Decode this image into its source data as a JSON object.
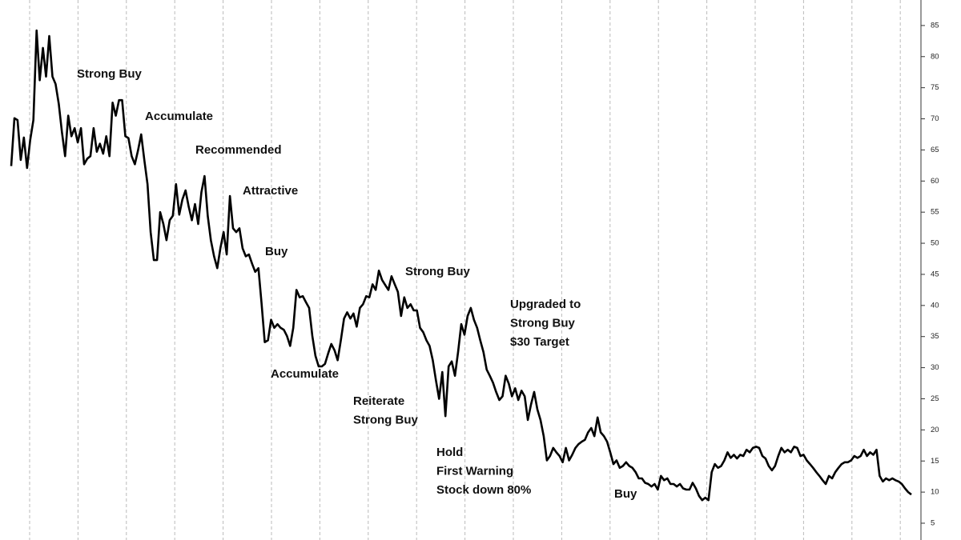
{
  "chart_data": {
    "type": "line",
    "annotations": [
      [
        "Strong Buy"
      ],
      [
        "Accumulate"
      ],
      [
        "Recommended"
      ],
      [
        "Attractive"
      ],
      [
        "Buy"
      ],
      [
        "Strong Buy"
      ],
      [
        "Upgraded to",
        "Strong Buy",
        "$30 Target"
      ],
      [
        "Accumulate"
      ],
      [
        "Reiterate",
        "Strong Buy"
      ],
      [
        "Hold",
        "First Warning",
        "Stock down 80%"
      ],
      [
        "Buy"
      ]
    ],
    "series": [
      {
        "color": "#000000",
        "values": [
          62.4,
          70.1,
          69.8,
          63.4,
          67,
          62.1,
          66.6,
          69.8,
          84.2,
          76.2,
          81.4,
          76.8,
          83.3,
          76.8,
          75.6,
          72.4,
          67.9,
          64,
          70.5,
          67.2,
          68.5,
          66.2,
          68.5,
          62.7,
          63.6,
          64,
          68.5,
          64.7,
          66,
          64.4,
          67.2,
          64,
          72.6,
          70.5,
          73,
          73,
          67.2,
          66.9,
          64,
          62.7,
          64.9,
          67.5,
          63.4,
          59.5,
          51.8,
          47.3,
          47.3,
          55,
          53.1,
          50.5,
          53.7,
          54.4,
          59.5,
          54.6,
          57,
          58.5,
          55.9,
          53.7,
          56.3,
          53.1,
          58.2,
          60.8,
          54.4,
          50.5,
          47.9,
          46,
          49.2,
          51.8,
          48.2,
          57.6,
          52.4,
          51.8,
          52.4,
          49.2,
          47.9,
          48.2,
          46.7,
          45.4,
          46,
          40.2,
          34.1,
          34.4,
          37.7,
          36.4,
          37,
          36.4,
          36.1,
          35.1,
          33.5,
          36.4,
          42.5,
          41.3,
          41.5,
          40.5,
          39.6,
          35.1,
          31.9,
          30.2,
          30.2,
          30.6,
          32.3,
          33.8,
          32.8,
          31.2,
          34.4,
          37.9,
          38.9,
          37.9,
          38.7,
          36.6,
          39.6,
          40.2,
          41.5,
          41.3,
          43.4,
          42.5,
          45.6,
          44.1,
          43.3,
          42.5,
          44.7,
          43.4,
          42.2,
          38.3,
          41.3,
          39.6,
          40.2,
          39.2,
          39.2,
          36.4,
          35.7,
          34.4,
          33.5,
          31.2,
          28,
          25,
          29.3,
          22.2,
          30.2,
          31,
          28.7,
          32.5,
          37,
          35.3,
          38.3,
          39.6,
          37.7,
          36.4,
          34.4,
          32.5,
          29.7,
          28.7,
          27.6,
          26.1,
          24.8,
          25.4,
          28.7,
          27.4,
          25.4,
          26.7,
          24.8,
          26.3,
          25.4,
          21.6,
          24.1,
          26.1,
          23.3,
          21.6,
          19,
          15.1,
          15.8,
          17.1,
          16.4,
          15.8,
          14.8,
          17.1,
          15.1,
          16,
          17.1,
          17.7,
          18.1,
          18.4,
          19.6,
          20.3,
          19,
          22,
          19.6,
          19,
          18.1,
          16.4,
          14.5,
          15.1,
          13.9,
          14.2,
          14.8,
          14.2,
          13.9,
          13.2,
          12.2,
          12.2,
          11.5,
          11.3,
          10.9,
          11.3,
          10.4,
          12.6,
          11.9,
          12.2,
          11.3,
          11.3,
          10.9,
          11.3,
          10.6,
          10.4,
          10.4,
          11.5,
          10.6,
          9.4,
          8.7,
          9.1,
          8.7,
          13.2,
          14.5,
          13.9,
          14.2,
          15.1,
          16.4,
          15.5,
          16,
          15.4,
          16,
          15.8,
          16.8,
          16.4,
          17.1,
          17.3,
          17.1,
          15.8,
          15.4,
          14.2,
          13.5,
          14.2,
          15.8,
          17.1,
          16.4,
          16.8,
          16.4,
          17.3,
          17.1,
          15.8,
          16,
          15.1,
          14.5,
          13.9,
          13.2,
          12.6,
          11.9,
          11.3,
          12.6,
          12.2,
          13.2,
          13.9,
          14.5,
          14.8,
          14.8,
          15.1,
          15.8,
          15.5,
          15.8,
          16.8,
          15.8,
          16.4,
          16,
          16.8,
          12.6,
          11.7,
          12.2,
          11.9,
          12.2,
          11.9,
          11.7,
          11.3,
          10.6,
          10,
          9.6
        ]
      }
    ],
    "ylim": [
      2.3,
      89.1
    ],
    "yticks": [
      5,
      10,
      15,
      20,
      25,
      30,
      35,
      40,
      45,
      50,
      55,
      60,
      65,
      70,
      75,
      80,
      85
    ],
    "y_axis_side": "right",
    "x_grid": "dashed"
  }
}
